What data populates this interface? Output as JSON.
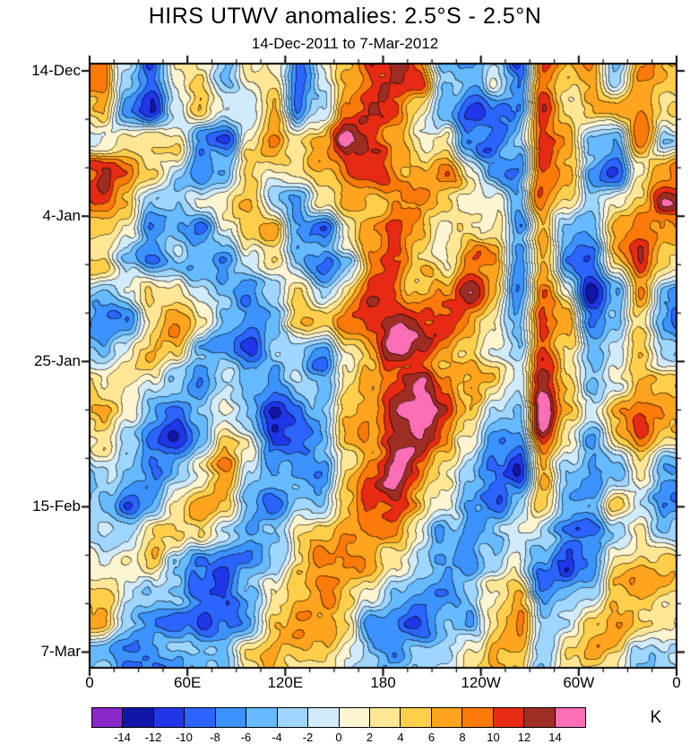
{
  "title": "HIRS UTWV anomalies: 2.5°S - 2.5°N",
  "subtitle": "14-Dec-2011 to 7-Mar-2012",
  "chart_data": {
    "type": "heatmap",
    "title": "HIRS UTWV anomalies: 2.5°S - 2.5°N",
    "subtitle": "14-Dec-2011 to 7-Mar-2012",
    "xlabel": "",
    "ylabel": "",
    "x_tick_labels": [
      "0",
      "60E",
      "120E",
      "180",
      "120W",
      "60W",
      "0"
    ],
    "y_tick_labels": [
      "14-Dec",
      "4-Jan",
      "25-Jan",
      "15-Feb",
      "7-Mar"
    ],
    "x_axis": "longitude (0E eastward around globe to 0)",
    "y_axis": "time (14-Dec-2011 top to 7-Mar-2012 bottom)",
    "colorbar": {
      "label": "K",
      "levels": [
        -14,
        -12,
        -10,
        -8,
        -6,
        -4,
        -2,
        0,
        2,
        4,
        6,
        8,
        10,
        12,
        14
      ],
      "colors": [
        "#8a27c9",
        "#1216a8",
        "#2036e8",
        "#2b64ff",
        "#3c92ff",
        "#66baff",
        "#9ed6ff",
        "#d2ebfa",
        "#fdf5d2",
        "#ffe796",
        "#ffcf4b",
        "#ffa41e",
        "#fb7a0a",
        "#e62a14",
        "#9e2e24",
        "#fb6eb4"
      ]
    },
    "grid_note": "anomaly values in K, 20 time rows x 24 longitude columns (15 deg each), estimated from contour fill",
    "values": [
      [
        6,
        -6,
        -10,
        2,
        3,
        -4,
        6,
        5,
        -6,
        3,
        8,
        12,
        13,
        9,
        -6,
        -8,
        -3,
        -9,
        9,
        6,
        9,
        -4,
        6,
        7
      ],
      [
        3,
        -8,
        -12,
        -3,
        5,
        3,
        -2,
        6,
        -8,
        -3,
        9,
        13,
        11,
        5,
        -4,
        -9,
        -6,
        -8,
        10,
        4,
        7,
        6,
        8,
        3
      ],
      [
        -4,
        4,
        6,
        3,
        -6,
        -8,
        3,
        7,
        3,
        6,
        15,
        12,
        8,
        3,
        5,
        -6,
        -8,
        -4,
        10,
        7,
        -3,
        -6,
        9,
        -4
      ],
      [
        10,
        8,
        3,
        -3,
        -8,
        -4,
        6,
        3,
        5,
        8,
        12,
        9,
        5,
        7,
        9,
        3,
        -5,
        -8,
        10,
        5,
        -6,
        -8,
        3,
        9
      ],
      [
        12,
        6,
        -4,
        -6,
        -3,
        3,
        7,
        -3,
        -5,
        3,
        7,
        5,
        9,
        11,
        7,
        5,
        3,
        -6,
        11,
        3,
        -4,
        3,
        6,
        12
      ],
      [
        8,
        3,
        -6,
        -8,
        -10,
        -4,
        3,
        5,
        -8,
        -10,
        3,
        7,
        11,
        9,
        5,
        7,
        5,
        -4,
        9,
        -3,
        -6,
        5,
        8,
        8
      ],
      [
        3,
        -4,
        -8,
        -4,
        -6,
        -8,
        -3,
        3,
        -6,
        -8,
        -3,
        9,
        12,
        7,
        3,
        9,
        7,
        -6,
        8,
        -5,
        -8,
        3,
        9,
        5
      ],
      [
        -5,
        -3,
        3,
        5,
        -3,
        -6,
        -8,
        -4,
        3,
        -4,
        5,
        11,
        9,
        5,
        7,
        11,
        5,
        -6,
        9,
        3,
        -10,
        -6,
        5,
        -3
      ],
      [
        -8,
        -6,
        5,
        8,
        3,
        -3,
        -10,
        -6,
        5,
        3,
        7,
        9,
        13,
        9,
        9,
        7,
        3,
        -8,
        9,
        5,
        -12,
        -8,
        3,
        -6
      ],
      [
        -4,
        3,
        7,
        3,
        -6,
        -8,
        -12,
        -3,
        -5,
        -8,
        3,
        8,
        15,
        12,
        7,
        3,
        -3,
        -6,
        9,
        3,
        -6,
        -4,
        6,
        -3
      ],
      [
        3,
        6,
        3,
        -4,
        -8,
        -4,
        -6,
        -8,
        -4,
        -6,
        5,
        10,
        13,
        16,
        10,
        5,
        3,
        -4,
        11,
        5,
        -3,
        3,
        8,
        5
      ],
      [
        8,
        4,
        -3,
        -6,
        -4,
        3,
        -4,
        -10,
        -6,
        -3,
        7,
        9,
        16,
        16,
        12,
        7,
        -3,
        -6,
        15,
        7,
        3,
        5,
        10,
        8
      ],
      [
        5,
        -3,
        -6,
        -8,
        -3,
        5,
        3,
        -6,
        -8,
        -4,
        5,
        8,
        13,
        15,
        9,
        3,
        -5,
        -8,
        9,
        3,
        -4,
        3,
        7,
        4
      ],
      [
        -3,
        -6,
        -8,
        -4,
        3,
        7,
        -3,
        -4,
        -6,
        -8,
        3,
        9,
        15,
        11,
        5,
        -3,
        -8,
        -10,
        8,
        -4,
        -6,
        -3,
        3,
        -4
      ],
      [
        -6,
        -8,
        -4,
        3,
        5,
        3,
        -6,
        -8,
        -3,
        -5,
        5,
        11,
        12,
        7,
        3,
        -6,
        -10,
        -6,
        3,
        -6,
        -8,
        3,
        -3,
        -6
      ],
      [
        -4,
        -3,
        3,
        6,
        3,
        -4,
        -8,
        -4,
        3,
        3,
        7,
        9,
        8,
        3,
        -4,
        -8,
        -6,
        -3,
        -4,
        -8,
        -10,
        -4,
        3,
        -3
      ],
      [
        3,
        5,
        6,
        -3,
        -8,
        -11,
        -10,
        -3,
        5,
        7,
        9,
        7,
        3,
        -3,
        -6,
        -10,
        -4,
        3,
        -6,
        -10,
        -6,
        3,
        5,
        3
      ],
      [
        5,
        3,
        -3,
        -6,
        -10,
        -12,
        -6,
        3,
        7,
        9,
        5,
        3,
        -3,
        -6,
        -8,
        -6,
        3,
        5,
        -8,
        -6,
        -3,
        5,
        7,
        5
      ],
      [
        3,
        -4,
        -6,
        -9,
        -11,
        -6,
        -3,
        5,
        8,
        5,
        3,
        -4,
        -6,
        -8,
        -4,
        -3,
        5,
        7,
        -4,
        -3,
        3,
        7,
        5,
        3
      ],
      [
        -3,
        -6,
        -8,
        -6,
        -4,
        -3,
        3,
        7,
        5,
        3,
        -3,
        -6,
        -8,
        -4,
        -3,
        3,
        7,
        5,
        -3,
        3,
        5,
        3,
        -3,
        -4
      ]
    ]
  }
}
